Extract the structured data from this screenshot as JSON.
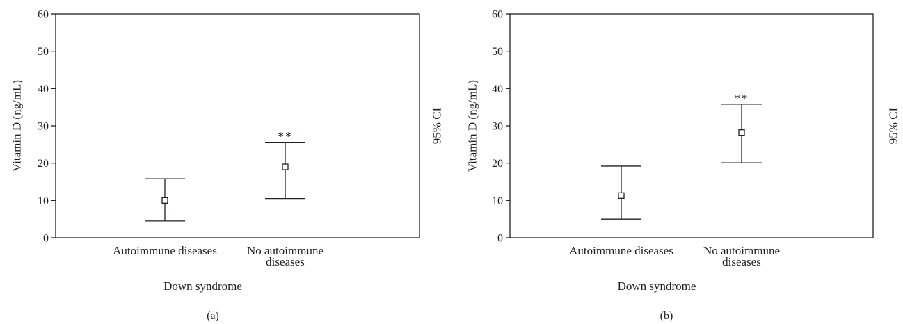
{
  "chart_data": [
    {
      "panel_label": "(a)",
      "type": "errorbar",
      "ylabel": "Vitamin D (ng/mL)",
      "right_label": "95% CI",
      "xlabel": "Down syndrome",
      "ylim": [
        0,
        60
      ],
      "yticks": [
        0,
        10,
        20,
        30,
        40,
        50,
        60
      ],
      "categories": [
        "Autoimmune diseases",
        "No autoimmune diseases"
      ],
      "category_lines": [
        [
          "Autoimmune diseases"
        ],
        [
          "No autoimmune",
          "diseases"
        ]
      ],
      "mean": [
        10,
        19
      ],
      "ci_lower": [
        4.5,
        10.5
      ],
      "ci_upper": [
        15.8,
        25.6
      ],
      "annotations": [
        "",
        "**"
      ]
    },
    {
      "panel_label": "(b)",
      "type": "errorbar",
      "ylabel": "Vitamin D (ng/mL)",
      "right_label": "95% CI",
      "xlabel": "Down syndrome",
      "ylim": [
        0,
        60
      ],
      "yticks": [
        0,
        10,
        20,
        30,
        40,
        50,
        60
      ],
      "categories": [
        "Autoimmune diseases",
        "No autoimmune diseases"
      ],
      "category_lines": [
        [
          "Autoimmune diseases"
        ],
        [
          "No autoimmune",
          "diseases"
        ]
      ],
      "mean": [
        11.3,
        28.2
      ],
      "ci_lower": [
        5,
        20.1
      ],
      "ci_upper": [
        19.2,
        35.8
      ],
      "annotations": [
        "",
        "**"
      ]
    }
  ]
}
